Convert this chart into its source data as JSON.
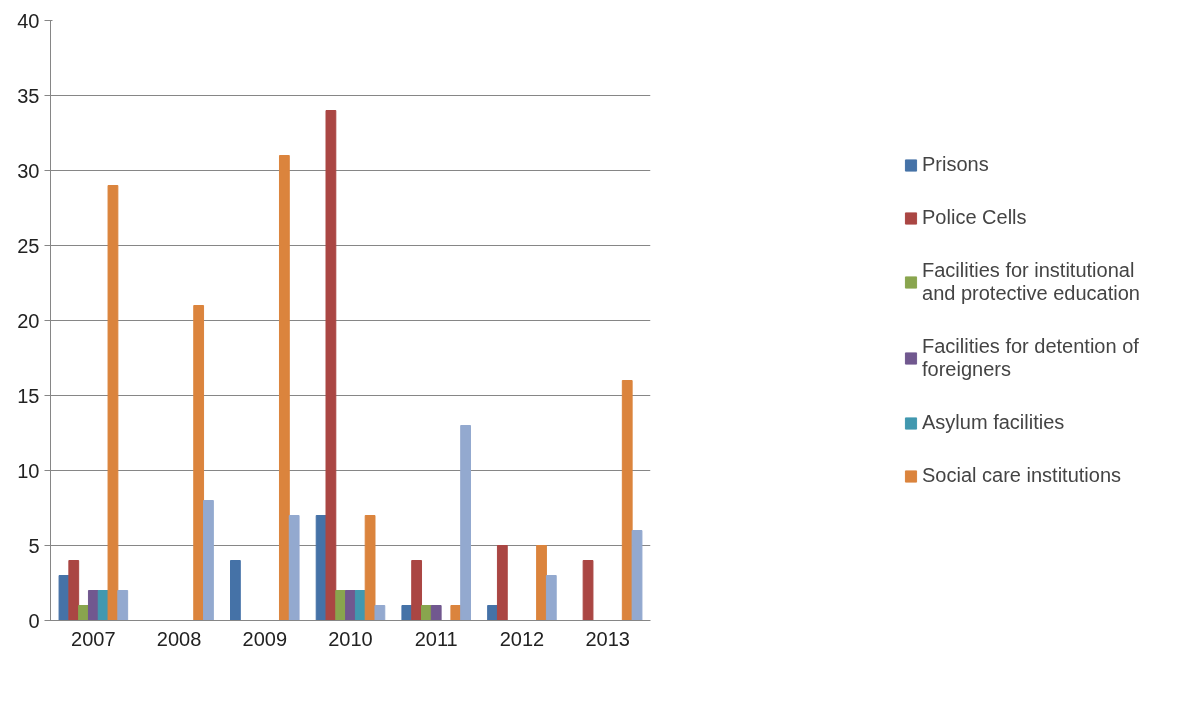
{
  "chart_data": {
    "type": "bar",
    "categories": [
      "2007",
      "2008",
      "2009",
      "2010",
      "2011",
      "2012",
      "2013"
    ],
    "series": [
      {
        "name": "Prisons",
        "color": "#4572a7",
        "values": [
          3,
          0,
          4,
          7,
          1,
          1,
          0
        ]
      },
      {
        "name": "Police Cells",
        "color": "#aa4643",
        "values": [
          4,
          0,
          0,
          34,
          4,
          5,
          4
        ]
      },
      {
        "name": "Facilities for institutional and protective education",
        "color": "#89a54e",
        "values": [
          1,
          0,
          0,
          2,
          1,
          0,
          0
        ]
      },
      {
        "name": "Facilities for detention of foreigners",
        "color": "#71588f",
        "values": [
          2,
          0,
          0,
          2,
          1,
          0,
          0
        ]
      },
      {
        "name": "Asylum facilities",
        "color": "#4198af",
        "values": [
          2,
          0,
          0,
          2,
          0,
          0,
          0
        ]
      },
      {
        "name": "Social care institutions",
        "color": "#db843d",
        "values": [
          29,
          21,
          31,
          7,
          1,
          5,
          16
        ]
      },
      {
        "color": "#93a9cf",
        "values": [
          2,
          8,
          7,
          1,
          13,
          3,
          6
        ]
      }
    ],
    "ylim": [
      0,
      40
    ],
    "yticks": [
      0,
      5,
      10,
      15,
      20,
      25,
      30,
      35,
      40
    ],
    "grid": "y",
    "legend": "right"
  }
}
